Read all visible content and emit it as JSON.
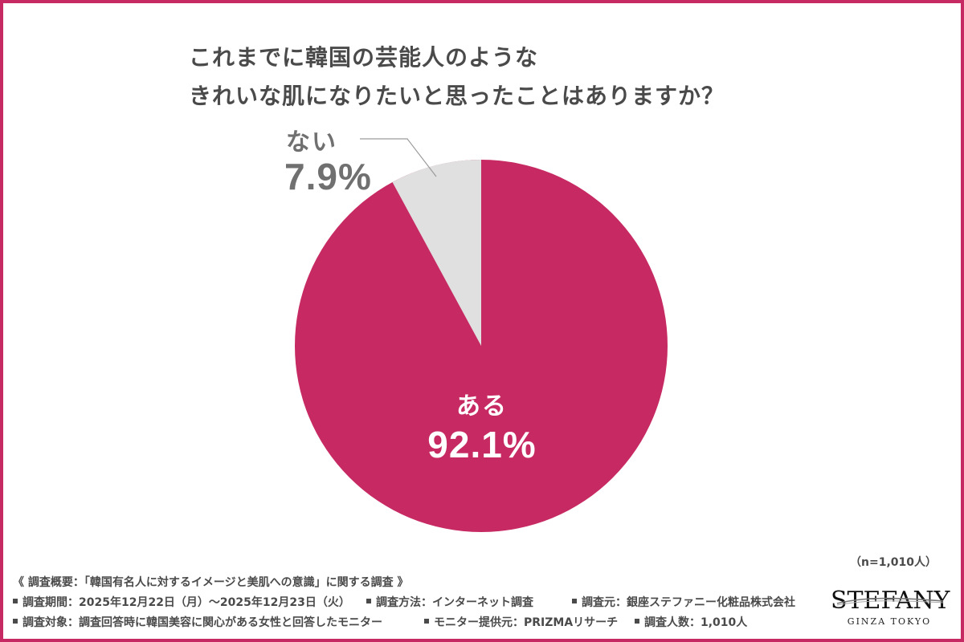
{
  "title": {
    "line1": "これまでに韓国の芸能人のような",
    "line2": "きれいな肌になりたいと思ったことはありますか？"
  },
  "colors": {
    "accent": "#c72a62",
    "slice_aru": "#c72a62",
    "slice_nai": "#e0e0e0",
    "label_gray": "#707070",
    "text_dark": "#4a4a4a",
    "leader_line": "#9a9a9a"
  },
  "chart_data": {
    "type": "pie",
    "title": "これまでに韓国の芸能人のようなきれいな肌になりたいと思ったことはありますか？",
    "categories": [
      "ある",
      "ない"
    ],
    "values": [
      92.1,
      7.9
    ],
    "unit": "%",
    "colors": [
      "#c72a62",
      "#e0e0e0"
    ],
    "start_angle": "12 o'clock, counter-clockwise for ない",
    "sample_size": "n=1,010人",
    "labels": [
      {
        "name": "ある",
        "value_text": "92.1%",
        "position": "inside"
      },
      {
        "name": "ない",
        "value_text": "7.9%",
        "position": "outside-with-leader"
      }
    ]
  },
  "slices": {
    "aru": {
      "name": "ある",
      "pct": "92.1%"
    },
    "nai": {
      "name": "ない",
      "pct": "7.9%"
    }
  },
  "sample_size": "（n=1,010人）",
  "footer": {
    "heading": "《 調査概要：「韓国有名人に対するイメージと美肌への意識」に関する調査 》",
    "row1": [
      "調査期間：2025年12月22日（月）～2025年12月23日（火）",
      "調査方法：インターネット調査",
      "調査元：銀座ステファニー化粧品株式会社"
    ],
    "row2": [
      "調査対象：調査回答時に韓国美容に関心がある女性と回答したモニター",
      "モニター提供元：PRIZMAリサーチ",
      "調査人数：1,010人"
    ]
  },
  "logo": {
    "brand": "STEFANY",
    "sub": "GINZA TOKYO"
  }
}
